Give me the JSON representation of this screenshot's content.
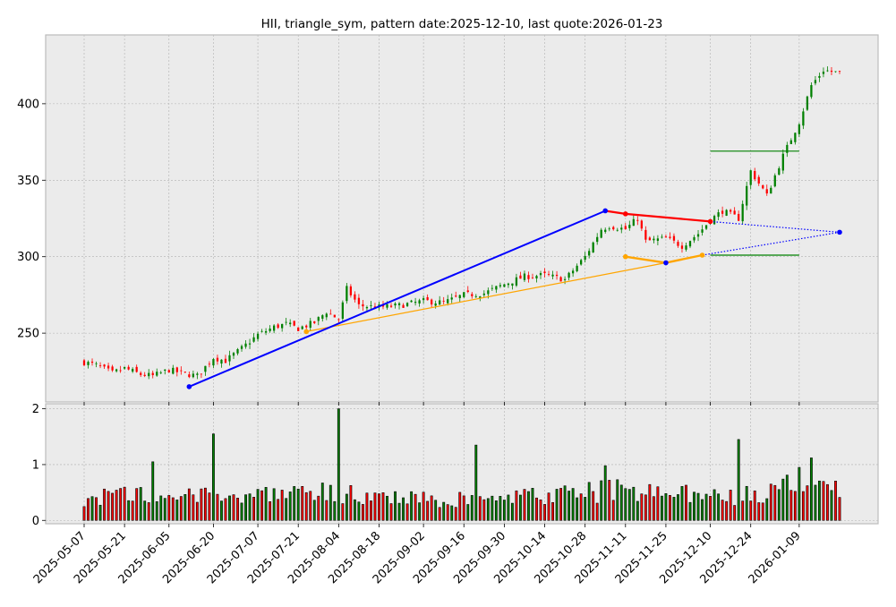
{
  "chart_data": {
    "type": "candlestick",
    "title": "HII, triangle_sym, pattern date:2025-12-10, last quote:2026-01-23",
    "grid": true,
    "price_axis": {
      "ylim": [
        205,
        445
      ],
      "ticks": [
        250,
        300,
        350,
        400
      ]
    },
    "volume_axis": {
      "ylim": [
        -0.06,
        2.09
      ],
      "ticks": [
        0,
        1,
        2
      ]
    },
    "x_axis": {
      "start_date": "2025-05-07",
      "end_date": "2026-01-23",
      "tick_labels": [
        "2025-05-07",
        "2025-05-21",
        "2025-06-05",
        "2025-06-20",
        "2025-07-07",
        "2025-07-21",
        "2025-08-04",
        "2025-08-18",
        "2025-09-02",
        "2025-09-16",
        "2025-09-30",
        "2025-10-14",
        "2025-10-28",
        "2025-11-11",
        "2025-11-25",
        "2025-12-10",
        "2025-12-24",
        "2026-01-09"
      ]
    },
    "colors": {
      "up": "#008000",
      "down": "#ff0000",
      "edge": "#000000",
      "wick_up": "#008000",
      "wick_down": "#ff0000"
    },
    "close_anchors": [
      [
        "2025-05-07",
        231
      ],
      [
        "2025-05-12",
        229
      ],
      [
        "2025-05-16",
        224
      ],
      [
        "2025-05-21",
        227
      ],
      [
        "2025-05-27",
        223
      ],
      [
        "2025-05-30",
        222
      ],
      [
        "2025-06-05",
        226
      ],
      [
        "2025-06-10",
        224
      ],
      [
        "2025-06-16",
        222
      ],
      [
        "2025-06-20",
        234
      ],
      [
        "2025-06-25",
        232
      ],
      [
        "2025-07-01",
        240
      ],
      [
        "2025-07-07",
        249
      ],
      [
        "2025-07-11",
        254
      ],
      [
        "2025-07-16",
        256
      ],
      [
        "2025-07-21",
        253
      ],
      [
        "2025-07-25",
        257
      ],
      [
        "2025-07-30",
        264
      ],
      [
        "2025-08-04",
        259
      ],
      [
        "2025-08-06",
        279
      ],
      [
        "2025-08-11",
        268
      ],
      [
        "2025-08-18",
        267
      ],
      [
        "2025-08-25",
        268
      ],
      [
        "2025-09-02",
        271
      ],
      [
        "2025-09-09",
        270
      ],
      [
        "2025-09-16",
        275
      ],
      [
        "2025-09-23",
        276
      ],
      [
        "2025-09-30",
        282
      ],
      [
        "2025-10-07",
        287
      ],
      [
        "2025-10-14",
        288
      ],
      [
        "2025-10-21",
        285
      ],
      [
        "2025-10-28",
        300
      ],
      [
        "2025-11-01",
        318
      ],
      [
        "2025-11-05",
        320
      ],
      [
        "2025-11-11",
        318
      ],
      [
        "2025-11-14",
        325
      ],
      [
        "2025-11-18",
        310
      ],
      [
        "2025-11-25",
        312
      ],
      [
        "2025-12-01",
        307
      ],
      [
        "2025-12-05",
        315
      ],
      [
        "2025-12-10",
        324
      ],
      [
        "2025-12-15",
        330
      ],
      [
        "2025-12-19",
        325
      ],
      [
        "2025-12-24",
        356
      ],
      [
        "2025-12-30",
        340
      ],
      [
        "2026-01-05",
        366
      ],
      [
        "2026-01-09",
        388
      ],
      [
        "2026-01-14",
        412
      ],
      [
        "2026-01-18",
        422
      ],
      [
        "2026-01-23",
        420
      ]
    ],
    "volume_anchors": [
      [
        "2025-05-07",
        0.45
      ],
      [
        "2025-06-05",
        0.5
      ],
      [
        "2025-07-07",
        0.45
      ],
      [
        "2025-08-04",
        0.55
      ],
      [
        "2025-09-02",
        0.4
      ],
      [
        "2025-10-14",
        0.45
      ],
      [
        "2025-11-11",
        0.6
      ],
      [
        "2025-12-10",
        0.45
      ],
      [
        "2025-12-24",
        0.5
      ],
      [
        "2026-01-09",
        0.7
      ],
      [
        "2026-01-23",
        0.55
      ]
    ],
    "volume_spikes": [
      [
        "2025-05-30",
        1.05
      ],
      [
        "2025-06-20",
        1.55
      ],
      [
        "2025-08-04",
        2.0
      ],
      [
        "2025-09-19",
        1.35
      ],
      [
        "2025-11-04",
        0.98
      ],
      [
        "2025-12-19",
        1.45
      ],
      [
        "2026-01-09",
        0.95
      ],
      [
        "2026-01-14",
        1.12
      ]
    ],
    "upper_trend_line": {
      "color": "#0000ff",
      "points": [
        [
          "2025-06-12",
          215
        ],
        [
          "2025-11-04",
          330
        ]
      ]
    },
    "lower_trend_line": {
      "color": "#ffa500",
      "points": [
        [
          "2025-07-23",
          251
        ],
        [
          "2025-11-25",
          296
        ]
      ]
    },
    "triangle_upper": {
      "color": "#ff0000",
      "points": [
        [
          "2025-11-04",
          330
        ],
        [
          "2025-11-11",
          328
        ],
        [
          "2025-12-10",
          323
        ]
      ]
    },
    "triangle_lower": {
      "color": "#ffa500",
      "points": [
        [
          "2025-11-11",
          300
        ],
        [
          "2025-11-25",
          296
        ],
        [
          "2025-12-07",
          301
        ]
      ]
    },
    "triangle_pivots": {
      "color": "#0000ff",
      "points": [
        [
          "2025-11-04",
          330
        ],
        [
          "2025-11-25",
          296
        ]
      ]
    },
    "projection": {
      "color": "#0000ff",
      "apex": [
        "2026-01-23",
        316
      ],
      "from_upper": [
        "2025-12-10",
        323
      ],
      "from_lower": [
        "2025-12-07",
        301
      ]
    },
    "target_levels": [
      {
        "color": "#008000",
        "value": 369,
        "from": "2025-12-10",
        "to": "2026-01-09"
      },
      {
        "color": "#008000",
        "value": 301,
        "from": "2025-12-10",
        "to": "2026-01-09"
      }
    ]
  }
}
